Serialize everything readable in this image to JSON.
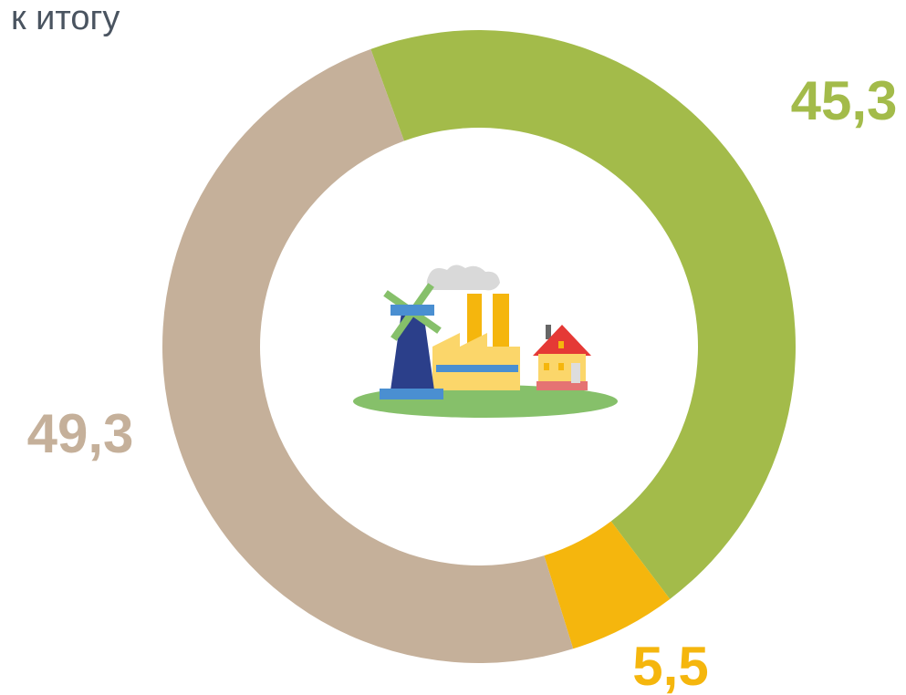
{
  "chart_data": {
    "type": "pie",
    "title": "к итогу",
    "values": [
      45.3,
      5.5,
      49.3
    ],
    "value_labels": [
      "45,3",
      "5,5",
      "49,3"
    ],
    "colors": [
      "#a3bb4a",
      "#f5b60d",
      "#c5b09a"
    ]
  }
}
